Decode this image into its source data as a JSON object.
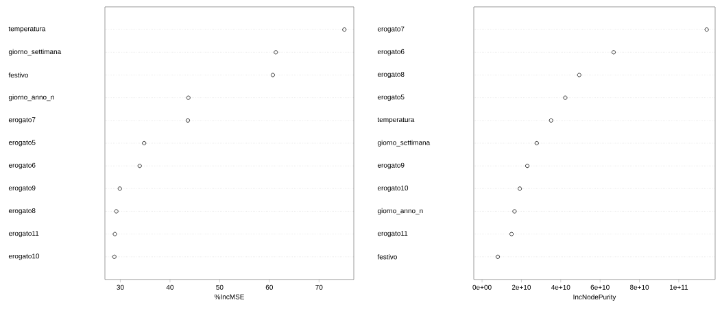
{
  "chart_data": [
    {
      "type": "scatter",
      "orientation": "horizontal",
      "xlabel": "%IncMSE",
      "categories": [
        "temperatura",
        "giorno_settimana",
        "festivo",
        "giorno_anno_n",
        "erogato7",
        "erogato5",
        "erogato6",
        "erogato9",
        "erogato8",
        "erogato11",
        "erogato10"
      ],
      "values": [
        75.1,
        61.3,
        60.7,
        43.7,
        43.6,
        34.8,
        33.9,
        29.9,
        29.2,
        28.9,
        28.8
      ],
      "color": "#000000",
      "marker": "circle",
      "grid": "y",
      "xlim": [
        26.9,
        77.0
      ],
      "xticks": [
        30,
        40,
        50,
        60,
        70
      ]
    },
    {
      "type": "scatter",
      "orientation": "horizontal",
      "xlabel": "IncNodePurity",
      "categories": [
        "erogato7",
        "erogato6",
        "erogato8",
        "erogato5",
        "temperatura",
        "giorno_settimana",
        "erogato9",
        "erogato10",
        "giorno_anno_n",
        "erogato11",
        "festivo"
      ],
      "values": [
        114200000000.0,
        66900000000.0,
        49400000000.0,
        42300000000.0,
        35100000000.0,
        27800000000.0,
        23000000000.0,
        19200000000.0,
        16500000000.0,
        15000000000.0,
        8000000000.0
      ],
      "color": "#000000",
      "marker": "circle",
      "grid": "y",
      "xlim": [
        -4200000000.0,
        118500000000.0
      ],
      "xticks": [
        {
          "value": 0,
          "label": "0e+00"
        },
        {
          "value": 20000000000.0,
          "label": "2e+10"
        },
        {
          "value": 40000000000.0,
          "label": "4e+10"
        },
        {
          "value": 60000000000.0,
          "label": "6e+10"
        },
        {
          "value": 80000000000.0,
          "label": "8e+10"
        },
        {
          "value": 100000000000.0,
          "label": "1e+11"
        }
      ]
    }
  ]
}
